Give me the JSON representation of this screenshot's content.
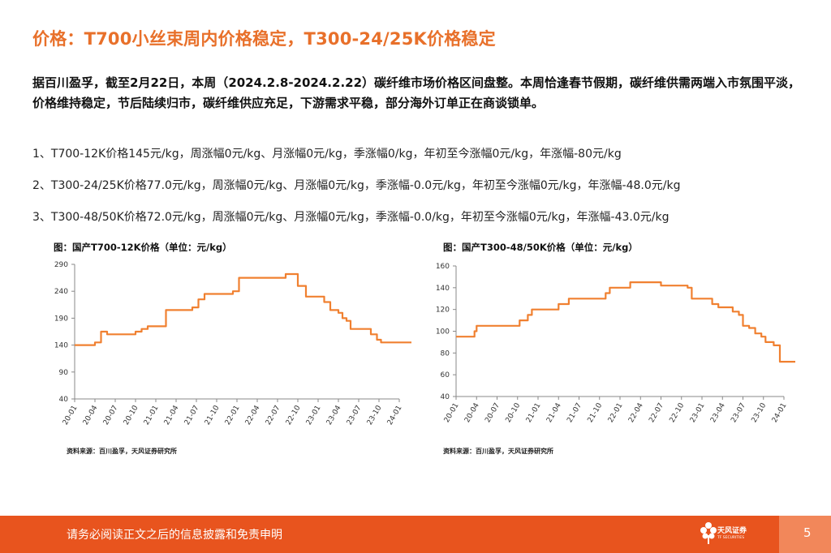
{
  "title": "价格：T700小丝束周内价格稳定，T300-24/25K价格稳定",
  "paragraph": "据百川盈孚，截至2月22日，本周（2024.2.8-2024.2.22）碳纤维市场价格区间盘整。本周恰逢春节假期，碳纤维供需两端入市氛围平淡，价格维持稳定，节后陆续归市，碳纤维供应充足，下游需求平稳，部分海外订单正在商谈锁单。",
  "items": [
    "1、T700-12K价格145元/kg，周涨幅0元/kg、月涨幅0元/kg，季涨幅0/kg，年初至今涨幅0元/kg，年涨幅-80元/kg",
    "2、T300-24/25K价格77.0元/kg，周涨幅0元/kg、月涨幅0元/kg，季涨幅-0.0元/kg，年初至今涨幅0元/kg，年涨幅-48.0元/kg",
    "3、T300-48/50K价格72.0元/kg，周涨幅0元/kg、月涨幅0元/kg，季涨幅-0.0/kg，年初至今涨幅0元/kg，年涨幅-43.0元/kg"
  ],
  "colors": {
    "accent": "#e8702a",
    "line": "#f08030",
    "footer": "#e8541e"
  },
  "chart_data": [
    {
      "type": "line",
      "title": "图：国产T700-12K价格（单位：元/kg）",
      "source": "资料来源：百川盈孚，天风证券研究所",
      "ylim": [
        40,
        290
      ],
      "yticks": [
        "290",
        "240",
        "190",
        "140",
        "90",
        "40"
      ],
      "xticks": [
        "20-01",
        "20-04",
        "20-07",
        "20-10",
        "21-01",
        "21-04",
        "21-07",
        "21-10",
        "22-01",
        "22-04",
        "22-07",
        "22-10",
        "23-01",
        "23-04",
        "23-07",
        "23-10",
        "24-01"
      ],
      "x": [
        0,
        0.4,
        0.7,
        1.0,
        1.2,
        1.3,
        1.5,
        1.6,
        1.8,
        2.0,
        2.3,
        2.6,
        3.0,
        3.3,
        3.6,
        3.9,
        4.2,
        4.5,
        4.8,
        5.2,
        5.5,
        5.8,
        6.1,
        6.4,
        6.7,
        6.9,
        7.0,
        7.2,
        7.5,
        7.8,
        8.1,
        8.4,
        8.7,
        9.0,
        9.3,
        9.6,
        9.9,
        10.2,
        10.4,
        10.6,
        10.8,
        11.0,
        11.2,
        11.4,
        11.7,
        12.0,
        12.3,
        12.6,
        12.9,
        13.0,
        13.2,
        13.4,
        13.6,
        13.8,
        14.0,
        14.3,
        14.6,
        14.9,
        15.1,
        15.3,
        15.5,
        15.8,
        16.1,
        16.4,
        16.6
      ],
      "series": [
        {
          "name": "T700-12K",
          "values": [
            140,
            140,
            140,
            145,
            145,
            165,
            165,
            160,
            160,
            160,
            160,
            160,
            165,
            170,
            175,
            175,
            175,
            205,
            205,
            205,
            205,
            210,
            225,
            235,
            235,
            235,
            235,
            235,
            235,
            240,
            265,
            265,
            265,
            265,
            265,
            265,
            265,
            265,
            272,
            272,
            272,
            250,
            250,
            230,
            230,
            230,
            220,
            205,
            205,
            200,
            190,
            185,
            170,
            170,
            170,
            170,
            160,
            150,
            145,
            145,
            145,
            145,
            145,
            145,
            145
          ]
        }
      ]
    },
    {
      "type": "line",
      "title": "图：国产T300-48/50K价格（单位：元/kg）",
      "source": "资料来源：百川盈孚，天风证券研究所",
      "ylim": [
        40,
        160
      ],
      "yticks": [
        "160",
        "140",
        "120",
        "100",
        "80",
        "60",
        "40"
      ],
      "xticks": [
        "20-01",
        "20-04",
        "20-07",
        "20-10",
        "21-01",
        "21-04",
        "21-07",
        "21-10",
        "22-01",
        "22-04",
        "22-07",
        "22-10",
        "23-01",
        "23-04",
        "23-07",
        "23-10",
        "24-01"
      ],
      "x": [
        0,
        0.5,
        0.7,
        0.9,
        1.0,
        1.5,
        2.0,
        2.5,
        3.0,
        3.1,
        3.5,
        3.7,
        4.0,
        4.5,
        5.0,
        5.2,
        5.5,
        6.0,
        6.5,
        7.0,
        7.3,
        7.5,
        8.0,
        8.5,
        9.0,
        9.5,
        10.0,
        10.5,
        11.0,
        11.3,
        11.5,
        12.0,
        12.5,
        12.8,
        13.0,
        13.2,
        13.5,
        13.8,
        14.0,
        14.3,
        14.6,
        14.9,
        15.1,
        15.3,
        15.5,
        15.8,
        16.1,
        16.4,
        16.6
      ],
      "series": [
        {
          "name": "T300-48/50K",
          "values": [
            95,
            95,
            95,
            100,
            105,
            105,
            105,
            105,
            105,
            110,
            115,
            120,
            120,
            120,
            125,
            125,
            130,
            130,
            130,
            130,
            135,
            140,
            140,
            145,
            145,
            145,
            142,
            142,
            142,
            140,
            130,
            130,
            125,
            122,
            122,
            122,
            118,
            115,
            105,
            103,
            98,
            95,
            90,
            90,
            87,
            72,
            72,
            72,
            72
          ]
        }
      ]
    }
  ],
  "footer": {
    "notice": "请务必阅读正文之后的信息披露和免责申明",
    "logo_text": "天风证券",
    "logo_sub": "TF SECURITIES",
    "page": "5"
  }
}
